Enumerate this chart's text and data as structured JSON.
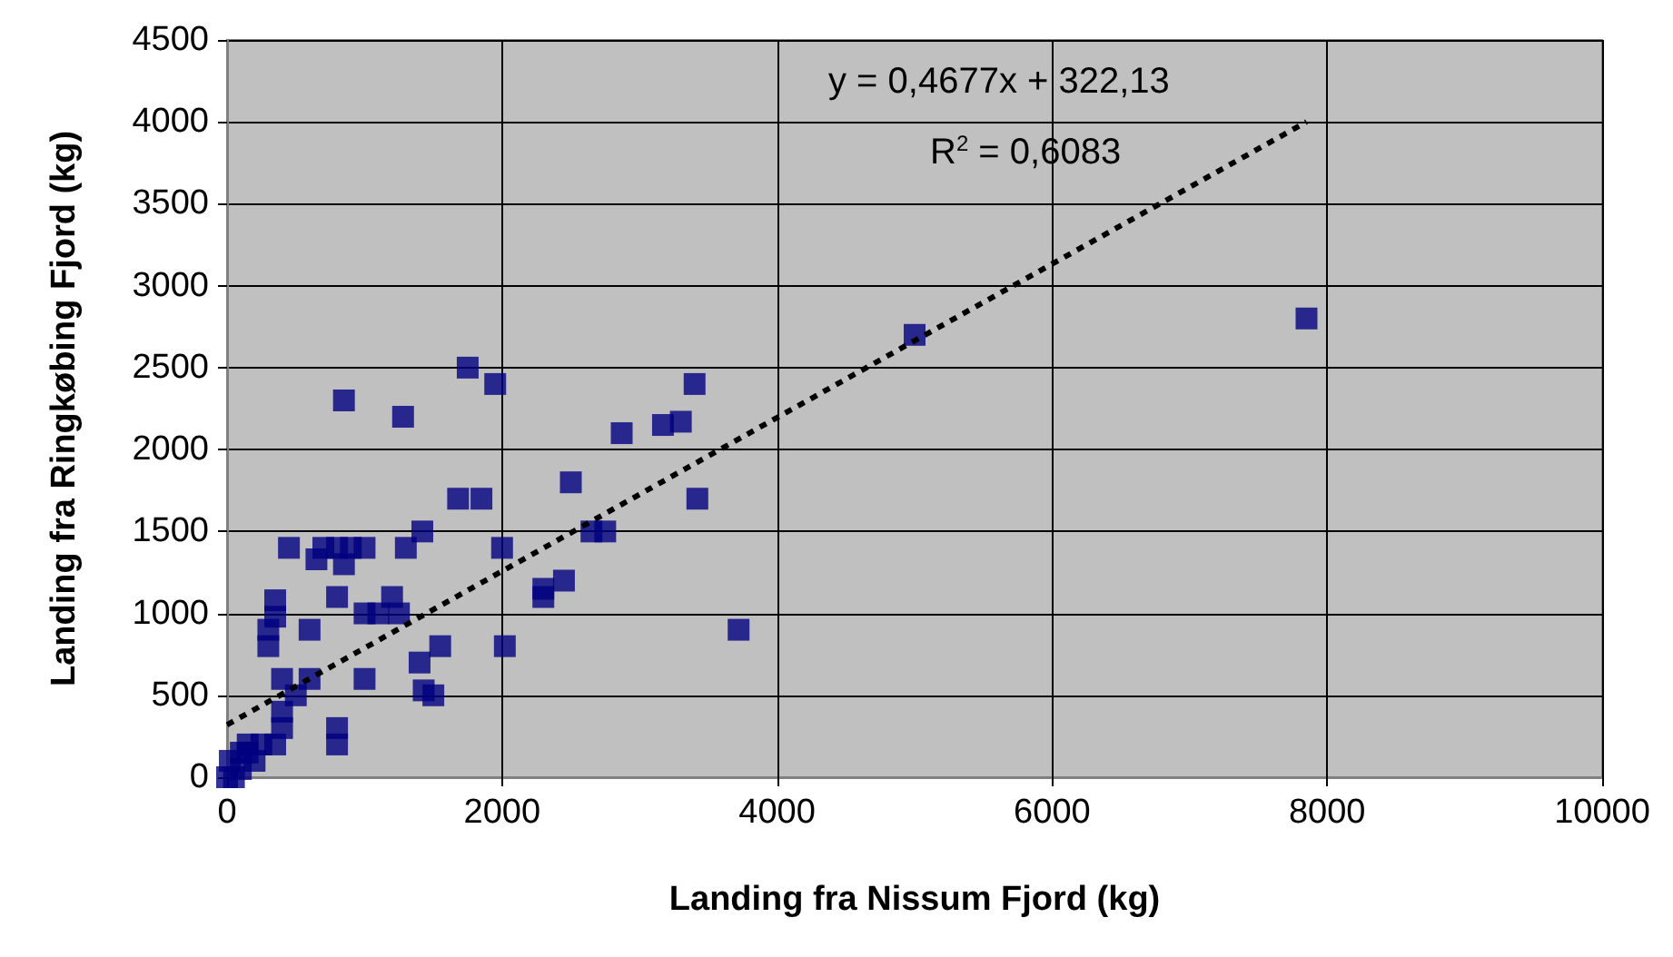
{
  "chart_data": {
    "type": "scatter",
    "xlabel": "Landing fra Nissum Fjord (kg)",
    "ylabel": "Landing fra Ringkøbing Fjord (kg)",
    "annotations": [
      "y = 0,4677x + 322,13",
      "R$^{2}$ = 0,6083"
    ],
    "xlim": [
      0,
      10000
    ],
    "xticks": [
      0,
      2000,
      4000,
      6000,
      8000,
      10000
    ],
    "ylim": [
      0,
      4500
    ],
    "yticks": [
      0,
      500,
      1000,
      1500,
      2000,
      2500,
      3000,
      3500,
      4000,
      4500
    ],
    "grid": true,
    "marker": "square",
    "series": [
      {
        "color": "#000080",
        "x": [
          7850,
          5000,
          3400,
          3300,
          3170,
          2870,
          1950,
          1750,
          1280,
          850,
          3420,
          2500,
          1850,
          1680,
          2750,
          2650,
          2000,
          1420,
          1300,
          1000,
          900,
          800,
          700,
          450,
          850,
          650,
          800,
          1200,
          1250,
          1000,
          1100,
          2450,
          2300,
          2300,
          350,
          350,
          300,
          300,
          600,
          3720,
          2020,
          1550,
          1400,
          1430,
          1500,
          1000,
          400,
          600,
          500,
          400,
          400,
          800,
          800,
          350,
          250,
          200,
          150,
          100,
          50,
          0,
          20,
          100,
          150
        ],
        "values": [
          2800,
          2700,
          2400,
          2170,
          2150,
          2100,
          2400,
          2500,
          2200,
          2300,
          1700,
          1800,
          1700,
          1700,
          1500,
          1500,
          1400,
          1500,
          1400,
          1400,
          1400,
          1400,
          1400,
          1400,
          1300,
          1330,
          1100,
          1100,
          1000,
          1000,
          1000,
          1200,
          1150,
          1100,
          1080,
          980,
          900,
          800,
          900,
          900,
          800,
          800,
          700,
          530,
          500,
          600,
          600,
          600,
          500,
          400,
          300,
          300,
          200,
          200,
          200,
          100,
          150,
          50,
          0,
          0,
          100,
          150,
          200
        ]
      },
      {
        "type": "line",
        "color": "#000000",
        "line_style": "dashed",
        "marker": "none",
        "x": [
          0,
          7850
        ],
        "values": [
          320,
          4000
        ]
      }
    ]
  }
}
